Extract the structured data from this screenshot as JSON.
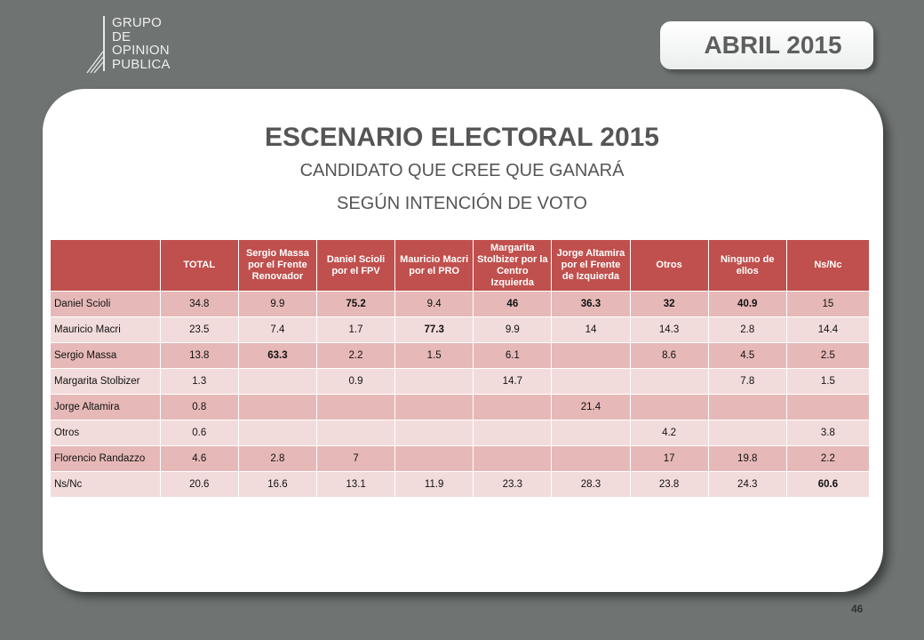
{
  "logo": {
    "lines": [
      "GRUPO",
      "DE",
      "OPINION",
      "PUBLICA"
    ]
  },
  "header": {
    "date": "ABRIL 2015"
  },
  "slide": {
    "title": "ESCENARIO ELECTORAL 2015",
    "subtitle_line1": "CANDIDATO QUE CREE QUE GANARÁ",
    "subtitle_line2": "SEGÚN INTENCIÓN DE VOTO"
  },
  "table": {
    "columns": [
      "",
      "TOTAL",
      "Sergio Massa por el Frente Renovador",
      "Daniel Scioli por el FPV",
      "Mauricio Macri por el PRO",
      "Margarita Stolbizer por la Centro Izquierda",
      "Jorge Altamira por el Frente de Izquierda",
      "Otros",
      "Ninguno de ellos",
      "Ns/Nc"
    ],
    "rows": [
      {
        "label": "Daniel Scioli",
        "cells": [
          "34.8",
          "9.9",
          "75.2",
          "9.4",
          "46",
          "36.3",
          "32",
          "40.9",
          "15"
        ],
        "bold": [
          false,
          false,
          true,
          false,
          true,
          true,
          true,
          true,
          false
        ]
      },
      {
        "label": "Mauricio Macri",
        "cells": [
          "23.5",
          "7.4",
          "1.7",
          "77.3",
          "9.9",
          "14",
          "14.3",
          "2.8",
          "14.4"
        ],
        "bold": [
          false,
          false,
          false,
          true,
          false,
          false,
          false,
          false,
          false
        ]
      },
      {
        "label": "Sergio Massa",
        "cells": [
          "13.8",
          "63.3",
          "2.2",
          "1.5",
          "6.1",
          "",
          "8.6",
          "4.5",
          "2.5"
        ],
        "bold": [
          false,
          true,
          false,
          false,
          false,
          false,
          false,
          false,
          false
        ]
      },
      {
        "label": "Margarita Stolbizer",
        "cells": [
          "1.3",
          "",
          "0.9",
          "",
          "14.7",
          "",
          "",
          "7.8",
          "1.5"
        ],
        "bold": [
          false,
          false,
          false,
          false,
          false,
          false,
          false,
          false,
          false
        ]
      },
      {
        "label": "Jorge Altamira",
        "cells": [
          "0.8",
          "",
          "",
          "",
          "",
          "21.4",
          "",
          "",
          ""
        ],
        "bold": [
          false,
          false,
          false,
          false,
          false,
          false,
          false,
          false,
          false
        ]
      },
      {
        "label": "Otros",
        "cells": [
          "0.6",
          "",
          "",
          "",
          "",
          "",
          "4.2",
          "",
          "3.8"
        ],
        "bold": [
          false,
          false,
          false,
          false,
          false,
          false,
          false,
          false,
          false
        ]
      },
      {
        "label": "Florencio Randazzo",
        "cells": [
          "4.6",
          "2.8",
          "7",
          "",
          "",
          "",
          "17",
          "19.8",
          "2.2"
        ],
        "bold": [
          false,
          false,
          false,
          false,
          false,
          false,
          false,
          false,
          false
        ]
      },
      {
        "label": "Ns/Nc",
        "cells": [
          "20.6",
          "16.6",
          "13.1",
          "11.9",
          "23.3",
          "28.3",
          "23.8",
          "24.3",
          "60.6"
        ],
        "bold": [
          false,
          false,
          false,
          false,
          false,
          false,
          false,
          false,
          true
        ]
      }
    ]
  },
  "footer": {
    "page_number": "46"
  },
  "colors": {
    "header_bg": "#c0504d",
    "row_dark": "#e6b9b8",
    "row_light": "#f2dcdb",
    "background": "#6f7473"
  }
}
